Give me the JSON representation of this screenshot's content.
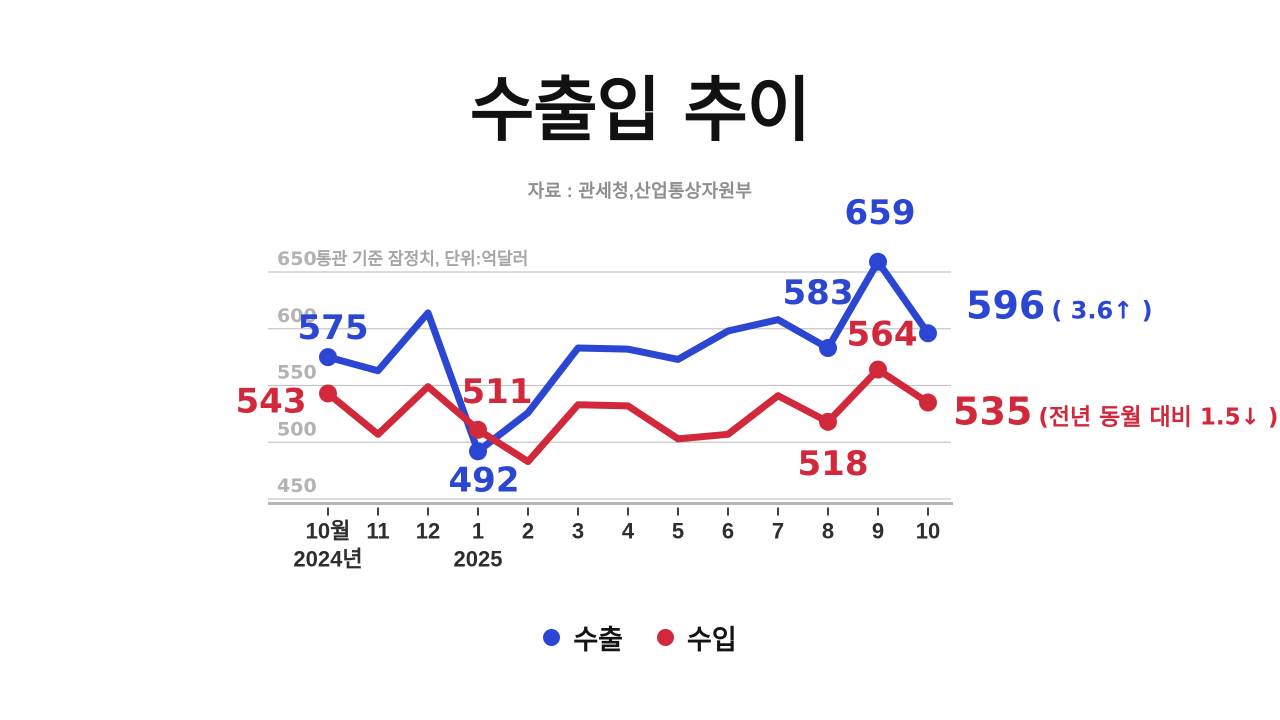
{
  "chart_data": {
    "type": "line",
    "title": "수출입 추이",
    "source": "자료 : 관세청,산업통상자원부",
    "note": "통관 기준 잠정치, 단위:억달러",
    "unit": "억달러",
    "categories": [
      "10월",
      "11",
      "12",
      "1",
      "2",
      "3",
      "4",
      "5",
      "6",
      "7",
      "8",
      "9",
      "10"
    ],
    "category_sublabels": [
      {
        "index": 0,
        "label": "2024년"
      },
      {
        "index": 3,
        "label": "2025"
      }
    ],
    "y_ticks": [
      650,
      600,
      550,
      500,
      450
    ],
    "ylim": [
      443,
      663
    ],
    "grid": true,
    "legend_position": "bottom",
    "series": [
      {
        "name": "수출",
        "color": "#2b46d2",
        "values": [
          575,
          563,
          614,
          492,
          526,
          583,
          582,
          573,
          598,
          608,
          583,
          659,
          596
        ],
        "marker_indices": [
          0,
          3,
          10,
          11,
          12
        ],
        "point_labels": [
          {
            "index": 0,
            "text": "575",
            "dx": 5,
            "dy": -29
          },
          {
            "index": 3,
            "text": "492",
            "dx": 6,
            "dy": 29
          },
          {
            "index": 10,
            "text": "583",
            "dx": -10,
            "dy": -55
          },
          {
            "index": 11,
            "text": "659",
            "dx": 2,
            "dy": -49
          }
        ],
        "end_label": {
          "text": "596",
          "suffix": "( 3.6↑ )",
          "dx": 38,
          "dy": -15,
          "suffix_size": 24,
          "suffix_weight": 700
        }
      },
      {
        "name": "수입",
        "color": "#d2283c",
        "values": [
          543,
          507,
          549,
          511,
          483,
          533,
          532,
          503,
          507,
          541,
          518,
          564,
          535
        ],
        "marker_indices": [
          0,
          3,
          10,
          11,
          12
        ],
        "point_labels": [
          {
            "index": 0,
            "text": "543",
            "dx": -57,
            "dy": 8
          },
          {
            "index": 3,
            "text": "511",
            "dx": 19,
            "dy": -38
          },
          {
            "index": 10,
            "text": "518",
            "dx": 5,
            "dy": 42
          },
          {
            "index": 11,
            "text": "564",
            "dx": 4,
            "dy": -35
          }
        ],
        "end_label": {
          "text": "535",
          "suffix": "(전년 동월 대비 1.5↓ )",
          "dx": 25,
          "dy": 22,
          "suffix_size": 23,
          "suffix_weight": 800
        }
      }
    ],
    "legend": [
      {
        "label": "수출",
        "color": "#2b46d2"
      },
      {
        "label": "수입",
        "color": "#d2283c"
      }
    ]
  },
  "colors": {
    "export_blue": "#2b46d2",
    "import_red": "#d2283c",
    "grid": "#c7c7c7",
    "axis": "#b6b6b6",
    "tick": "#3f3f3f",
    "axis_text": "#b3b3b3",
    "month_text": "#2e2e2e",
    "note_text": "#a6a6a6",
    "subtitle_text": "#8e8e8e",
    "title_text": "#111111",
    "background": "#ffffff"
  }
}
